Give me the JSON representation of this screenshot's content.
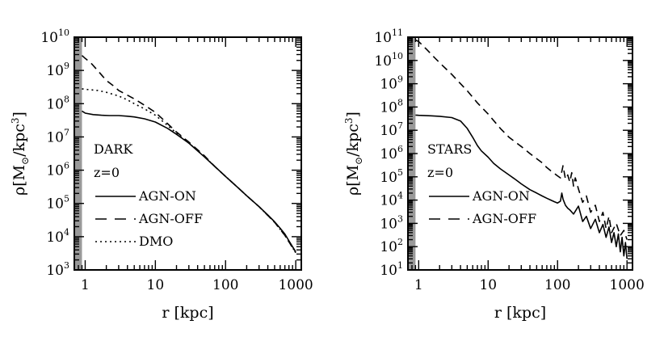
{
  "chart_data": [
    {
      "type": "line",
      "xscale": "log",
      "yscale": "log",
      "xlim": [
        0.7,
        1200
      ],
      "ylim": [
        1000,
        10000000000
      ],
      "xlabel": "r [kpc]",
      "ylabel_main": "ρ[M",
      "ylabel_sub": "⊙",
      "ylabel_tail": "/kpc",
      "ylabel_exp": "3",
      "ylabel_close": "]",
      "xtick_labels": [
        "1",
        "10",
        "100",
        "1000"
      ],
      "xtick_values": [
        1,
        10,
        100,
        1000
      ],
      "ytick_values": [
        1000,
        10000,
        100000,
        1000000,
        10000000,
        100000000,
        1000000000,
        10000000000
      ],
      "ytick_base": "10",
      "ytick_exponents": [
        "3",
        "4",
        "5",
        "6",
        "7",
        "8",
        "9",
        "10"
      ],
      "shaded_region": [
        0.7,
        0.9
      ],
      "annotation_component": "DARK",
      "annotation_redshift": "z=0",
      "series": [
        {
          "name": "AGN-ON",
          "style": "solid",
          "x": [
            0.9,
            1.0,
            1.3,
            1.7,
            2.2,
            3,
            4,
            5,
            7,
            10,
            15,
            20,
            30,
            50,
            70,
            100,
            150,
            200,
            300,
            400,
            500,
            600,
            700,
            800,
            900,
            1000
          ],
          "y": [
            60000000,
            52000000,
            47000000,
            45000000,
            44000000,
            44000000,
            42000000,
            40000000,
            35000000,
            28000000,
            18000000,
            12000000,
            6500000,
            2500000,
            1300000,
            650000,
            300000,
            170000,
            80000,
            45000,
            28000,
            18000,
            12000,
            7500,
            5000,
            3500
          ]
        },
        {
          "name": "AGN-OFF",
          "style": "dashed",
          "x": [
            0.9,
            1.0,
            1.2,
            1.5,
            2.0,
            2.5,
            3,
            4,
            5,
            7,
            10,
            15,
            20,
            30,
            50,
            70,
            100,
            150,
            200,
            300,
            500,
            700,
            1000
          ],
          "y": [
            2800000000,
            2300000000,
            1700000000,
            1000000000,
            500000000,
            350000000,
            250000000,
            180000000,
            140000000,
            90000000,
            55000000,
            25000000,
            14000000,
            7000000,
            2700000,
            1300000,
            650000,
            300000,
            170000,
            80000,
            27000,
            11000,
            3300
          ]
        },
        {
          "name": "DMO",
          "style": "dotted",
          "x": [
            0.9,
            1.0,
            1.5,
            2,
            3,
            4,
            5,
            7,
            10,
            15,
            20,
            30,
            50,
            70,
            100,
            150,
            200,
            300,
            500,
            700,
            1000
          ],
          "y": [
            280000000,
            270000000,
            250000000,
            220000000,
            170000000,
            130000000,
            100000000,
            70000000,
            45000000,
            22000000,
            13000000,
            6500000,
            2600000,
            1300000,
            650000,
            300000,
            170000,
            80000,
            27000,
            11000,
            3300
          ]
        }
      ]
    },
    {
      "type": "line",
      "xscale": "log",
      "yscale": "log",
      "xlim": [
        0.7,
        1200
      ],
      "ylim": [
        10,
        100000000000
      ],
      "xlabel": "r [kpc]",
      "ylabel_main": "ρ[M",
      "ylabel_sub": "⊙",
      "ylabel_tail": "/kpc",
      "ylabel_exp": "3",
      "ylabel_close": "]",
      "xtick_labels": [
        "1",
        "10",
        "100",
        "1000"
      ],
      "xtick_values": [
        1,
        10,
        100,
        1000
      ],
      "ytick_values": [
        10,
        100,
        1000,
        10000,
        100000,
        1000000,
        10000000,
        100000000,
        1000000000,
        10000000000,
        100000000000
      ],
      "ytick_base": "10",
      "ytick_exponents": [
        "1",
        "2",
        "3",
        "4",
        "5",
        "6",
        "7",
        "8",
        "9",
        "10",
        "11"
      ],
      "shaded_region": [
        0.7,
        0.9
      ],
      "annotation_component": "STARS",
      "annotation_redshift": "z=0",
      "series": [
        {
          "name": "AGN-ON",
          "style": "solid",
          "x": [
            0.9,
            1.0,
            1.5,
            2,
            3,
            4,
            5,
            6,
            7,
            8,
            10,
            12,
            15,
            20,
            25,
            30,
            40,
            50,
            60,
            70,
            80,
            90,
            100,
            110,
            115,
            120,
            125,
            130,
            140,
            150,
            170,
            200,
            230,
            260,
            300,
            350,
            400,
            450,
            500,
            550,
            600,
            650,
            700,
            750,
            800,
            850,
            900,
            950,
            1000
          ],
          "y": [
            45000000,
            44000000,
            42000000,
            40000000,
            35000000,
            25000000,
            12000000,
            5000000,
            2200000,
            1300000,
            700000,
            380000,
            220000,
            120000,
            75000,
            50000,
            28000,
            20000,
            15000,
            12000,
            10000,
            8500,
            7500,
            9000,
            20000,
            11000,
            8000,
            6000,
            4500,
            3800,
            2500,
            5500,
            1200,
            2000,
            600,
            1500,
            400,
            900,
            250,
            700,
            150,
            400,
            100,
            350,
            60,
            250,
            40,
            150,
            30
          ]
        },
        {
          "name": "AGN-OFF",
          "style": "dashed",
          "x": [
            0.9,
            1.0,
            1.3,
            1.7,
            2,
            3,
            4,
            5,
            7,
            10,
            15,
            20,
            30,
            40,
            50,
            60,
            70,
            80,
            90,
            100,
            110,
            120,
            130,
            140,
            150,
            160,
            170,
            180,
            200,
            230,
            260,
            300,
            350,
            400,
            450,
            500,
            550,
            600,
            700,
            800,
            900,
            1000
          ],
          "y": [
            75000000000,
            65000000000,
            30000000000,
            13000000000,
            8000000000,
            2500000000,
            1000000000,
            500000000,
            150000000,
            50000000,
            12000000,
            5000000,
            2000000,
            1000000,
            600000,
            400000,
            250000,
            180000,
            140000,
            110000,
            90000,
            300000,
            80000,
            120000,
            60000,
            150000,
            40000,
            90000,
            30000,
            8000,
            15000,
            3000,
            6000,
            1200,
            3000,
            600,
            2000,
            400,
            1000,
            300,
            500,
            200
          ]
        }
      ]
    }
  ]
}
